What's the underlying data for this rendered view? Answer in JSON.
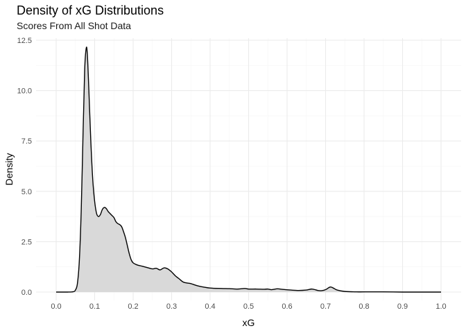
{
  "chart_data": {
    "type": "area",
    "title": "Density of xG Distributions",
    "subtitle": "Scores From All Shot Data",
    "xlabel": "xG",
    "ylabel": "Density",
    "xlim": [
      0.0,
      1.0
    ],
    "ylim": [
      0.0,
      12.5
    ],
    "x_ticks": [
      0.0,
      0.1,
      0.2,
      0.3,
      0.4,
      0.5,
      0.6,
      0.7,
      0.8,
      0.9,
      1.0
    ],
    "x_tick_labels": [
      "0.0",
      "0.1",
      "0.2",
      "0.3",
      "0.4",
      "0.5",
      "0.6",
      "0.7",
      "0.8",
      "0.9",
      "1.0"
    ],
    "y_ticks": [
      0.0,
      2.5,
      5.0,
      7.5,
      10.0,
      12.5
    ],
    "y_tick_labels": [
      "0.0",
      "2.5",
      "5.0",
      "7.5",
      "10.0",
      "12.5"
    ],
    "grid": true,
    "colors": {
      "fill": "#d9d9d9",
      "line": "#000000",
      "grid_major": "#ebebeb",
      "grid_minor": "#f5f5f5"
    },
    "series": [
      {
        "x": [
          0.0,
          0.03,
          0.045,
          0.05,
          0.055,
          0.06,
          0.065,
          0.07,
          0.074,
          0.078,
          0.081,
          0.085,
          0.09,
          0.095,
          0.1,
          0.105,
          0.11,
          0.115,
          0.12,
          0.125,
          0.13,
          0.135,
          0.14,
          0.145,
          0.15,
          0.155,
          0.16,
          0.165,
          0.17,
          0.175,
          0.18,
          0.185,
          0.19,
          0.195,
          0.2,
          0.21,
          0.22,
          0.23,
          0.24,
          0.25,
          0.26,
          0.27,
          0.28,
          0.29,
          0.3,
          0.31,
          0.32,
          0.33,
          0.34,
          0.35,
          0.37,
          0.4,
          0.43,
          0.45,
          0.47,
          0.49,
          0.5,
          0.52,
          0.54,
          0.55,
          0.56,
          0.575,
          0.59,
          0.61,
          0.63,
          0.65,
          0.665,
          0.68,
          0.69,
          0.7,
          0.712,
          0.72,
          0.73,
          0.75,
          0.78,
          0.8,
          0.85,
          0.9,
          0.95,
          1.0
        ],
        "y": [
          0.0,
          0.0,
          0.02,
          0.1,
          0.4,
          1.5,
          4.0,
          8.0,
          11.0,
          12.1,
          11.8,
          10.0,
          7.5,
          5.6,
          4.5,
          3.9,
          3.75,
          3.85,
          4.1,
          4.2,
          4.15,
          4.0,
          3.9,
          3.8,
          3.7,
          3.5,
          3.4,
          3.35,
          3.25,
          3.0,
          2.7,
          2.3,
          1.9,
          1.6,
          1.45,
          1.35,
          1.3,
          1.25,
          1.2,
          1.15,
          1.18,
          1.1,
          1.2,
          1.15,
          1.0,
          0.8,
          0.65,
          0.5,
          0.45,
          0.42,
          0.3,
          0.2,
          0.18,
          0.17,
          0.15,
          0.18,
          0.15,
          0.15,
          0.14,
          0.15,
          0.12,
          0.16,
          0.13,
          0.1,
          0.08,
          0.1,
          0.15,
          0.08,
          0.07,
          0.12,
          0.25,
          0.2,
          0.1,
          0.03,
          0.01,
          0.01,
          0.01,
          0.0,
          0.0,
          0.0
        ]
      }
    ]
  }
}
